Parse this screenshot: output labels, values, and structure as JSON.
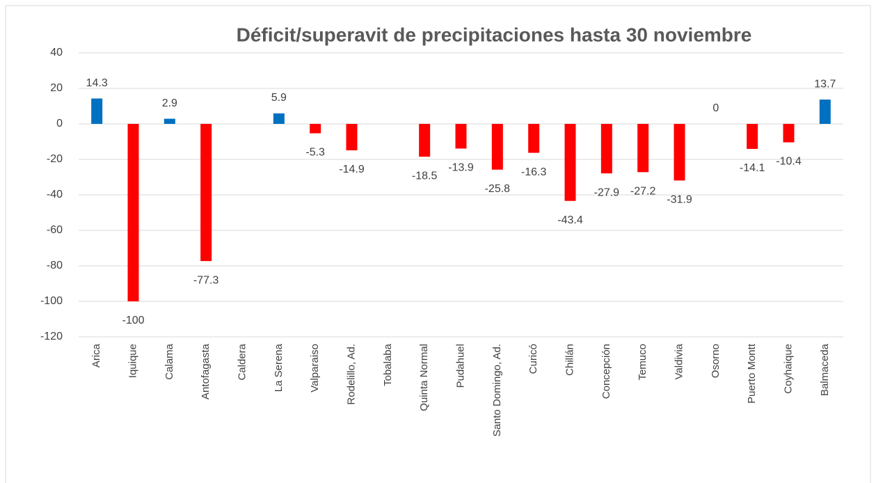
{
  "chart_data": {
    "type": "bar",
    "title": "Déficit/superavit de precipitaciones hasta 30 noviembre",
    "categories": [
      "Arica",
      "Iquique",
      "Calama",
      "Antofagasta",
      "Caldera",
      "La Serena",
      "Valparaiso",
      "Rodelillo, Ad.",
      "Tobalaba",
      "Quinta Normal",
      "Pudahuel",
      "Santo Domingo, Ad.",
      "Curicó",
      "Chillán",
      "Concepción",
      "Temuco",
      "Valdivia",
      "Osorno",
      "Puerto Montt",
      "Coyhaique",
      "Balmaceda"
    ],
    "values": [
      14.3,
      -100,
      2.9,
      -77.3,
      null,
      5.9,
      -5.3,
      -14.9,
      null,
      -18.5,
      -13.9,
      -25.8,
      -16.3,
      -43.4,
      -27.9,
      -27.2,
      -31.9,
      0,
      -14.1,
      -10.4,
      13.7
    ],
    "positive_color": "#0070c0",
    "negative_color": "#ff0000",
    "ylim": [
      -120,
      40
    ],
    "yticks": [
      -120,
      -100,
      -80,
      -60,
      -40,
      -20,
      0,
      20,
      40
    ],
    "grid": true
  }
}
